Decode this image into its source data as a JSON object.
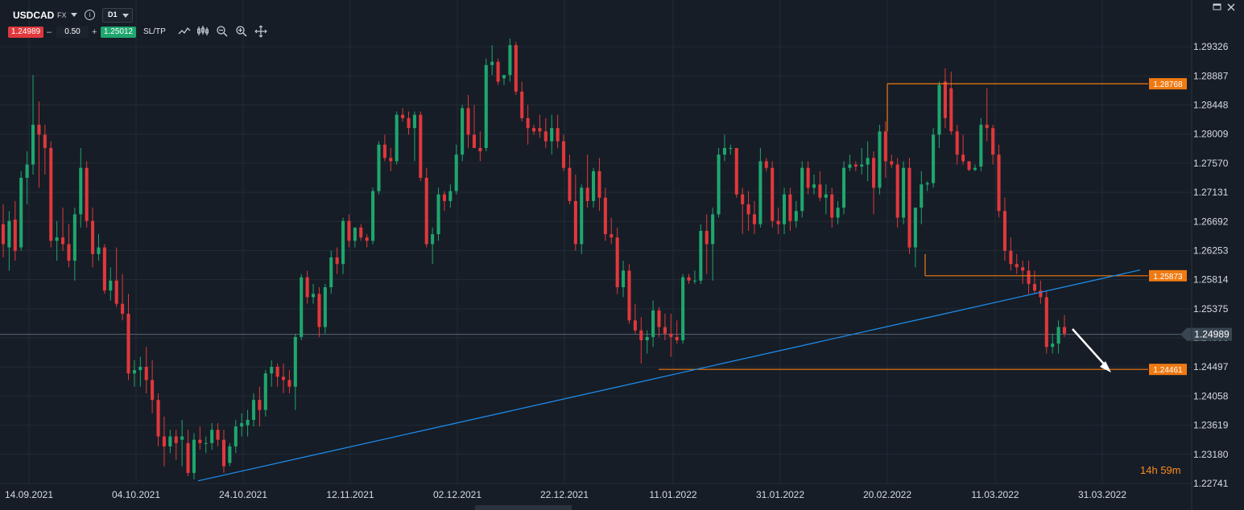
{
  "toolbar": {
    "symbol": "USDCAD",
    "market": "FX",
    "timeframe": "D1",
    "bid": "1.24989",
    "minus": "–",
    "lot": "0.50",
    "plus": "+",
    "ask": "1.25012",
    "sltp": "SL/TP",
    "tools": [
      "line-chart-icon",
      "indicators-icon",
      "zoom-out-icon",
      "zoom-in-icon",
      "crosshair-icon"
    ]
  },
  "timer": {
    "hours": "14",
    "h": "h",
    "minutes": "59",
    "m": "m"
  },
  "colors": {
    "background": "#161d26",
    "bull": "#1fa66e",
    "bear": "#e0383c",
    "trendline": "#1e88e5",
    "level": "#f07a12",
    "current": "#5b6673"
  },
  "chart_data": {
    "type": "candlestick",
    "symbol": "USDCAD",
    "timeframe": "D1",
    "y_ticks": [
      "1.29326",
      "1.28887",
      "1.28448",
      "1.28009",
      "1.27570",
      "1.27131",
      "1.26692",
      "1.26253",
      "1.25814",
      "1.25375",
      "1.24936",
      "1.24497",
      "1.24058",
      "1.23619",
      "1.23180",
      "1.22741"
    ],
    "ylim": [
      1.22741,
      1.29546
    ],
    "x_labels": [
      "14.09.2021",
      "04.10.2021",
      "24.10.2021",
      "12.11.2021",
      "02.12.2021",
      "22.12.2021",
      "11.01.2022",
      "31.01.2022",
      "20.02.2022",
      "11.03.2022",
      "31.03.2022"
    ],
    "current_price": "1.24989",
    "levels": [
      {
        "label": "1.28768",
        "value": 1.28768
      },
      {
        "label": "1.25873",
        "value": 1.25873
      },
      {
        "label": "1.24461",
        "value": 1.24461
      }
    ],
    "trendline": {
      "from": {
        "bar": 0,
        "price": 1.2278
      },
      "to": {
        "bar": 1,
        "price": 1.2596
      }
    },
    "candles": [
      [
        1.2665,
        1.2695,
        1.2615,
        1.2635
      ],
      [
        1.263,
        1.2685,
        1.2595,
        1.267
      ],
      [
        1.2672,
        1.27,
        1.261,
        1.2625
      ],
      [
        1.263,
        1.2745,
        1.2625,
        1.2735
      ],
      [
        1.2735,
        1.2775,
        1.2695,
        1.2755
      ],
      [
        1.2755,
        1.289,
        1.274,
        1.2815
      ],
      [
        1.2815,
        1.285,
        1.272,
        1.28
      ],
      [
        1.28,
        1.2815,
        1.274,
        1.278
      ],
      [
        1.278,
        1.279,
        1.263,
        1.264
      ],
      [
        1.264,
        1.267,
        1.261,
        1.2645
      ],
      [
        1.2645,
        1.269,
        1.2625,
        1.2635
      ],
      [
        1.2635,
        1.2665,
        1.26,
        1.261
      ],
      [
        1.261,
        1.269,
        1.258,
        1.268
      ],
      [
        1.268,
        1.278,
        1.266,
        1.275
      ],
      [
        1.275,
        1.276,
        1.266,
        1.267
      ],
      [
        1.267,
        1.269,
        1.26,
        1.262
      ],
      [
        1.262,
        1.265,
        1.261,
        1.263
      ],
      [
        1.263,
        1.2635,
        1.256,
        1.2565
      ],
      [
        1.2565,
        1.26,
        1.255,
        1.258
      ],
      [
        1.258,
        1.263,
        1.254,
        1.2545
      ],
      [
        1.2545,
        1.259,
        1.252,
        1.253
      ],
      [
        1.253,
        1.256,
        1.243,
        1.244
      ],
      [
        1.244,
        1.246,
        1.242,
        1.2445
      ],
      [
        1.2445,
        1.2465,
        1.242,
        1.245
      ],
      [
        1.245,
        1.248,
        1.241,
        1.243
      ],
      [
        1.243,
        1.246,
        1.238,
        1.24
      ],
      [
        1.24,
        1.241,
        1.233,
        1.2345
      ],
      [
        1.2345,
        1.2375,
        1.23,
        1.233
      ],
      [
        1.233,
        1.2355,
        1.232,
        1.2345
      ],
      [
        1.2345,
        1.2355,
        1.231,
        1.2335
      ],
      [
        1.234,
        1.237,
        1.23,
        1.2345
      ],
      [
        1.2335,
        1.2355,
        1.2285,
        1.229
      ],
      [
        1.229,
        1.235,
        1.228,
        1.234
      ],
      [
        1.234,
        1.236,
        1.2325,
        1.2335
      ],
      [
        1.2335,
        1.2345,
        1.232,
        1.2335
      ],
      [
        1.2335,
        1.2365,
        1.2325,
        1.2355
      ],
      [
        1.2355,
        1.2365,
        1.233,
        1.234
      ],
      [
        1.234,
        1.2355,
        1.229,
        1.23
      ],
      [
        1.2305,
        1.2335,
        1.23,
        1.233
      ],
      [
        1.233,
        1.237,
        1.232,
        1.236
      ],
      [
        1.236,
        1.238,
        1.2345,
        1.2365
      ],
      [
        1.2362,
        1.2385,
        1.2345,
        1.237
      ],
      [
        1.237,
        1.241,
        1.236,
        1.24
      ],
      [
        1.24,
        1.242,
        1.236,
        1.2385
      ],
      [
        1.2385,
        1.2445,
        1.2375,
        1.244
      ],
      [
        1.244,
        1.246,
        1.242,
        1.245
      ],
      [
        1.245,
        1.2455,
        1.242,
        1.2435
      ],
      [
        1.2435,
        1.2455,
        1.241,
        1.243
      ],
      [
        1.243,
        1.2445,
        1.241,
        1.242
      ],
      [
        1.242,
        1.25,
        1.2385,
        1.2495
      ],
      [
        1.2495,
        1.259,
        1.249,
        1.2585
      ],
      [
        1.2585,
        1.2595,
        1.2545,
        1.2555
      ],
      [
        1.2555,
        1.2575,
        1.2545,
        1.256
      ],
      [
        1.256,
        1.257,
        1.2495,
        1.251
      ],
      [
        1.251,
        1.2575,
        1.25,
        1.257
      ],
      [
        1.257,
        1.2625,
        1.256,
        1.2615
      ],
      [
        1.2615,
        1.263,
        1.259,
        1.2605
      ],
      [
        1.2605,
        1.2675,
        1.259,
        1.267
      ],
      [
        1.267,
        1.268,
        1.263,
        1.264
      ],
      [
        1.264,
        1.266,
        1.263,
        1.266
      ],
      [
        1.266,
        1.2665,
        1.264,
        1.2645
      ],
      [
        1.2645,
        1.265,
        1.263,
        1.264
      ],
      [
        1.264,
        1.272,
        1.2635,
        1.2715
      ],
      [
        1.2715,
        1.279,
        1.271,
        1.2785
      ],
      [
        1.2785,
        1.28,
        1.276,
        1.2765
      ],
      [
        1.2765,
        1.278,
        1.2745,
        1.276
      ],
      [
        1.276,
        1.2835,
        1.2755,
        1.283
      ],
      [
        1.283,
        1.284,
        1.282,
        1.2825
      ],
      [
        1.2825,
        1.2835,
        1.28,
        1.281
      ],
      [
        1.281,
        1.2835,
        1.276,
        1.283
      ],
      [
        1.283,
        1.2835,
        1.273,
        1.2735
      ],
      [
        1.2735,
        1.275,
        1.263,
        1.2635
      ],
      [
        1.2635,
        1.266,
        1.2605,
        1.265
      ],
      [
        1.265,
        1.272,
        1.264,
        1.271
      ],
      [
        1.271,
        1.2715,
        1.2685,
        1.27
      ],
      [
        1.27,
        1.2725,
        1.269,
        1.2715
      ],
      [
        1.2715,
        1.2785,
        1.271,
        1.277
      ],
      [
        1.277,
        1.2845,
        1.276,
        1.284
      ],
      [
        1.284,
        1.286,
        1.278,
        1.28
      ],
      [
        1.28,
        1.2845,
        1.278,
        1.278
      ],
      [
        1.278,
        1.2805,
        1.276,
        1.2775
      ],
      [
        1.278,
        1.2915,
        1.2775,
        1.2905
      ],
      [
        1.2905,
        1.2935,
        1.289,
        1.291
      ],
      [
        1.291,
        1.2915,
        1.2875,
        1.288
      ],
      [
        1.2885,
        1.289,
        1.2875,
        1.289
      ],
      [
        1.289,
        1.2945,
        1.288,
        1.2935
      ],
      [
        1.2935,
        1.294,
        1.286,
        1.2865
      ],
      [
        1.2865,
        1.288,
        1.282,
        1.2825
      ],
      [
        1.2825,
        1.2845,
        1.2785,
        1.281
      ],
      [
        1.281,
        1.2815,
        1.28,
        1.2805
      ],
      [
        1.281,
        1.283,
        1.2795,
        1.2805
      ],
      [
        1.2805,
        1.2825,
        1.278,
        1.279
      ],
      [
        1.279,
        1.283,
        1.277,
        1.281
      ],
      [
        1.281,
        1.283,
        1.278,
        1.279
      ],
      [
        1.279,
        1.28,
        1.2745,
        1.275
      ],
      [
        1.275,
        1.277,
        1.2695,
        1.27
      ],
      [
        1.27,
        1.274,
        1.2625,
        1.2635
      ],
      [
        1.2635,
        1.2725,
        1.262,
        1.272
      ],
      [
        1.272,
        1.277,
        1.269,
        1.27
      ],
      [
        1.27,
        1.275,
        1.269,
        1.2745
      ],
      [
        1.2745,
        1.2765,
        1.2685,
        1.2705
      ],
      [
        1.2705,
        1.272,
        1.264,
        1.265
      ],
      [
        1.265,
        1.2675,
        1.2635,
        1.2645
      ],
      [
        1.2645,
        1.266,
        1.256,
        1.257
      ],
      [
        1.257,
        1.261,
        1.2555,
        1.2595
      ],
      [
        1.2595,
        1.2605,
        1.2515,
        1.252
      ],
      [
        1.252,
        1.2545,
        1.25,
        1.2505
      ],
      [
        1.2505,
        1.2525,
        1.2455,
        1.249
      ],
      [
        1.249,
        1.2505,
        1.247,
        1.2495
      ],
      [
        1.2495,
        1.255,
        1.248,
        1.2535
      ],
      [
        1.2535,
        1.254,
        1.2495,
        1.251
      ],
      [
        1.251,
        1.253,
        1.249,
        1.25
      ],
      [
        1.25,
        1.253,
        1.2465,
        1.2495
      ],
      [
        1.2495,
        1.252,
        1.2485,
        1.249
      ],
      [
        1.249,
        1.259,
        1.2485,
        1.2585
      ],
      [
        1.2585,
        1.259,
        1.2575,
        1.258
      ],
      [
        1.258,
        1.2595,
        1.2575,
        1.258
      ],
      [
        1.258,
        1.2665,
        1.2575,
        1.2655
      ],
      [
        1.2655,
        1.268,
        1.259,
        1.2635
      ],
      [
        1.2635,
        1.269,
        1.258,
        1.268
      ],
      [
        1.268,
        1.278,
        1.2675,
        1.277
      ],
      [
        1.277,
        1.28,
        1.276,
        1.278
      ],
      [
        1.278,
        1.2785,
        1.277,
        1.278
      ],
      [
        1.278,
        1.278,
        1.2705,
        1.271
      ],
      [
        1.271,
        1.272,
        1.265,
        1.2695
      ],
      [
        1.2695,
        1.2715,
        1.2655,
        1.268
      ],
      [
        1.268,
        1.27,
        1.265,
        1.2665
      ],
      [
        1.2665,
        1.278,
        1.266,
        1.276
      ],
      [
        1.276,
        1.2765,
        1.2745,
        1.275
      ],
      [
        1.275,
        1.276,
        1.266,
        1.267
      ],
      [
        1.267,
        1.269,
        1.265,
        1.2665
      ],
      [
        1.2665,
        1.272,
        1.265,
        1.271
      ],
      [
        1.271,
        1.272,
        1.2655,
        1.267
      ],
      [
        1.267,
        1.27,
        1.266,
        1.2685
      ],
      [
        1.2685,
        1.276,
        1.2675,
        1.275
      ],
      [
        1.275,
        1.276,
        1.271,
        1.272
      ],
      [
        1.272,
        1.274,
        1.271,
        1.2725
      ],
      [
        1.2725,
        1.2745,
        1.27,
        1.2705
      ],
      [
        1.2705,
        1.2725,
        1.268,
        1.271
      ],
      [
        1.271,
        1.272,
        1.266,
        1.2675
      ],
      [
        1.2675,
        1.27,
        1.2665,
        1.269
      ],
      [
        1.269,
        1.276,
        1.268,
        1.275
      ],
      [
        1.275,
        1.277,
        1.2745,
        1.2755
      ],
      [
        1.2755,
        1.276,
        1.2745,
        1.2752
      ],
      [
        1.2752,
        1.278,
        1.274,
        1.2755
      ],
      [
        1.2755,
        1.279,
        1.273,
        1.2765
      ],
      [
        1.2765,
        1.2775,
        1.268,
        1.272
      ],
      [
        1.272,
        1.2815,
        1.271,
        1.2805
      ],
      [
        1.2805,
        1.282,
        1.2735,
        1.276
      ],
      [
        1.276,
        1.277,
        1.275,
        1.2755
      ],
      [
        1.2755,
        1.2765,
        1.266,
        1.2675
      ],
      [
        1.2675,
        1.276,
        1.2665,
        1.275
      ],
      [
        1.275,
        1.2765,
        1.262,
        1.263
      ],
      [
        1.263,
        1.269,
        1.26,
        1.269
      ],
      [
        1.269,
        1.2745,
        1.2665,
        1.2725
      ],
      [
        1.2725,
        1.273,
        1.2715,
        1.2727
      ],
      [
        1.2727,
        1.281,
        1.272,
        1.28
      ],
      [
        1.28,
        1.288,
        1.278,
        1.2875
      ],
      [
        1.288,
        1.29,
        1.281,
        1.2825
      ],
      [
        1.287,
        1.2895,
        1.28,
        1.2805
      ],
      [
        1.2805,
        1.2815,
        1.2755,
        1.277
      ],
      [
        1.277,
        1.28,
        1.2755,
        1.276
      ],
      [
        1.276,
        1.276,
        1.2745,
        1.2747
      ],
      [
        1.2747,
        1.2755,
        1.2745,
        1.275
      ],
      [
        1.2752,
        1.2825,
        1.2745,
        1.2815
      ],
      [
        1.2815,
        1.287,
        1.279,
        1.281
      ],
      [
        1.281,
        1.2815,
        1.2755,
        1.277
      ],
      [
        1.277,
        1.2785,
        1.2675,
        1.2685
      ],
      [
        1.2685,
        1.2705,
        1.261,
        1.2625
      ],
      [
        1.2625,
        1.2645,
        1.2595,
        1.2605
      ],
      [
        1.2605,
        1.262,
        1.259,
        1.26
      ],
      [
        1.26,
        1.261,
        1.2575,
        1.2595
      ],
      [
        1.2595,
        1.261,
        1.256,
        1.2575
      ],
      [
        1.2575,
        1.2595,
        1.256,
        1.2565
      ],
      [
        1.2565,
        1.258,
        1.2545,
        1.2555
      ],
      [
        1.2555,
        1.2565,
        1.247,
        1.248
      ],
      [
        1.248,
        1.25,
        1.247,
        1.2485
      ],
      [
        1.2485,
        1.252,
        1.247,
        1.251
      ],
      [
        1.251,
        1.2528,
        1.2495,
        1.25
      ]
    ]
  }
}
